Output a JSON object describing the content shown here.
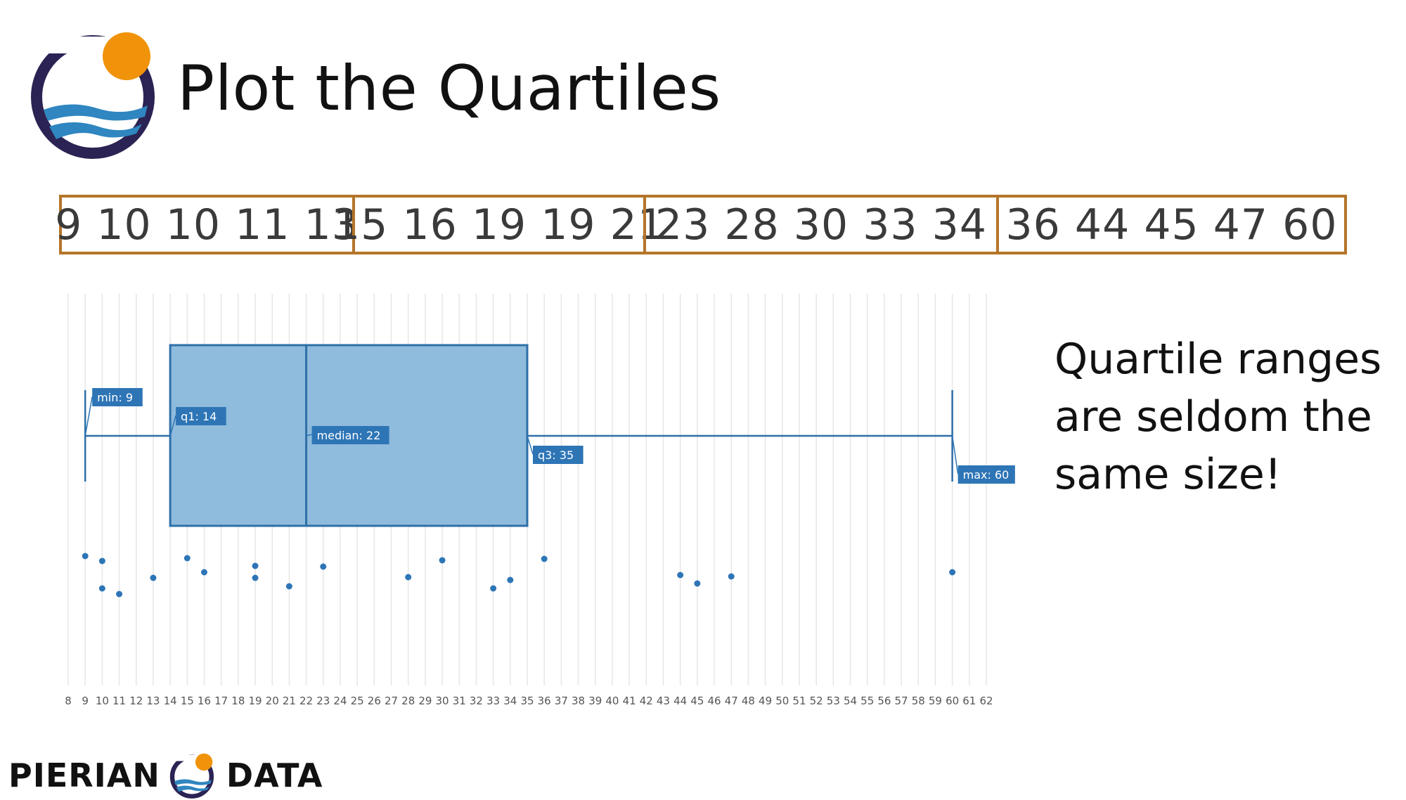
{
  "title": "Plot the Quartiles",
  "quartile_groups": [
    "9 10 10 11 13",
    "15 16 19 19 21",
    "23 28 30 33 34",
    "36 44 45 47 60"
  ],
  "side_text": "Quartile ranges are seldom the same size!",
  "footer": {
    "left": "PIERIAN",
    "right": "DATA"
  },
  "colors": {
    "box_fill": "#8fbbdc",
    "box_stroke": "#2e6fa8",
    "point": "#2e75b6",
    "label_bg": "#2e75b6",
    "quartile_border": "#b5752a",
    "logo_ring": "#2b2353",
    "logo_sun": "#f0930a",
    "logo_wave": "#2f86c0"
  },
  "chart_data": {
    "type": "box",
    "xlim": [
      8,
      62
    ],
    "ticks": [
      8,
      9,
      10,
      11,
      12,
      13,
      14,
      15,
      16,
      17,
      18,
      19,
      20,
      21,
      22,
      23,
      24,
      25,
      26,
      27,
      28,
      29,
      30,
      31,
      32,
      33,
      34,
      35,
      36,
      37,
      38,
      39,
      40,
      41,
      42,
      43,
      44,
      45,
      46,
      47,
      48,
      49,
      50,
      51,
      52,
      53,
      54,
      55,
      56,
      57,
      58,
      59,
      60,
      61,
      62
    ],
    "grid": true,
    "stats": {
      "min": 9,
      "q1": 14,
      "median": 22,
      "q3": 35,
      "max": 60
    },
    "labels": [
      {
        "key": "min",
        "text": "min: 9"
      },
      {
        "key": "q1",
        "text": "q1: 14"
      },
      {
        "key": "median",
        "text": "median: 22"
      },
      {
        "key": "q3",
        "text": "q3: 35"
      },
      {
        "key": "max",
        "text": "max: 60"
      }
    ],
    "points": [
      9,
      10,
      10,
      11,
      13,
      15,
      16,
      19,
      19,
      21,
      23,
      28,
      30,
      33,
      34,
      36,
      44,
      45,
      47,
      60
    ]
  }
}
